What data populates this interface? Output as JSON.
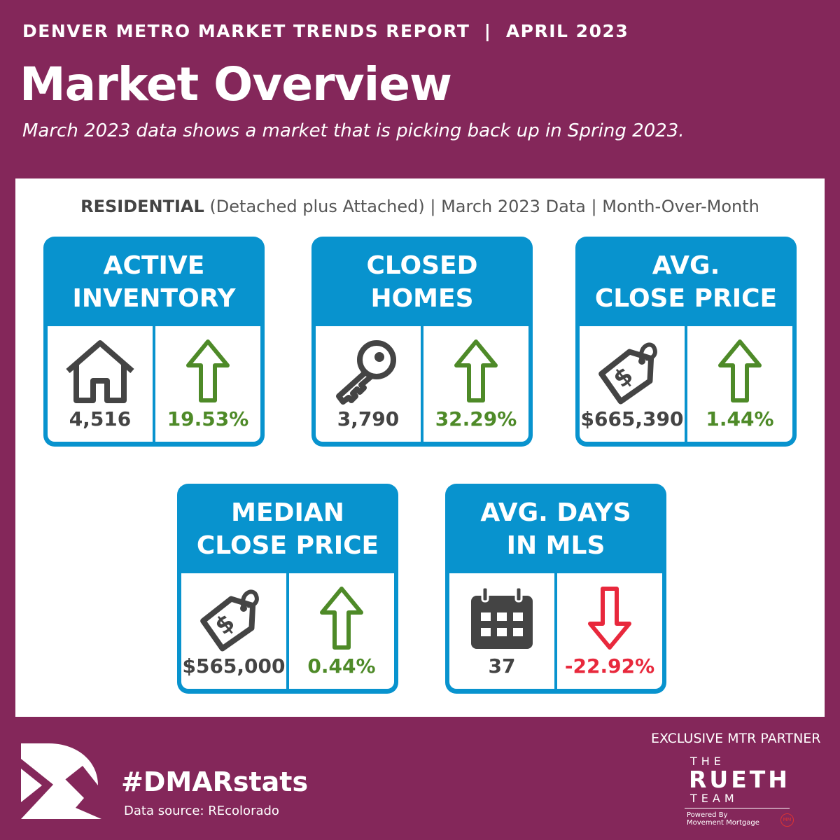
{
  "header": {
    "kicker": "DENVER METRO MARKET TRENDS REPORT  |  APRIL 2023",
    "title": "Market Overview",
    "subtitle": "March 2023 data shows a market that is picking back up in Spring 2023."
  },
  "panel": {
    "heading_bold": "RESIDENTIAL",
    "heading_rest": " (Detached plus Attached) | March 2023 Data | Month-Over-Month"
  },
  "colors": {
    "background": "#84275A",
    "card": "#0893CE",
    "up": "#4E8A28",
    "down": "#E8283C",
    "neutral": "#444444"
  },
  "cards": [
    {
      "title": "ACTIVE\nINVENTORY",
      "icon": "house-icon",
      "value": "4,516",
      "change": "19.53%",
      "direction": "up"
    },
    {
      "title": "CLOSED\nHOMES",
      "icon": "key-icon",
      "value": "3,790",
      "change": "32.29%",
      "direction": "up"
    },
    {
      "title": "AVG.\nCLOSE PRICE",
      "icon": "price-tag-icon",
      "value": "$665,390",
      "change": "1.44%",
      "direction": "up"
    },
    {
      "title": "MEDIAN\nCLOSE PRICE",
      "icon": "price-tag-icon",
      "value": "$565,000",
      "change": "0.44%",
      "direction": "up"
    },
    {
      "title": "AVG. DAYS\nIN MLS",
      "icon": "calendar-icon",
      "value": "37",
      "change": "-22.92%",
      "direction": "down"
    }
  ],
  "footer": {
    "hashtag": "#DMARstats",
    "source": "Data source: REcolorado",
    "partner": "EXCLUSIVE MTR PARTNER",
    "logo_the": "THE",
    "logo_name": "RUETH",
    "logo_team": "TEAM",
    "powered": "Powered By",
    "movement": "Movement Mortgage",
    "mm": "MM"
  }
}
